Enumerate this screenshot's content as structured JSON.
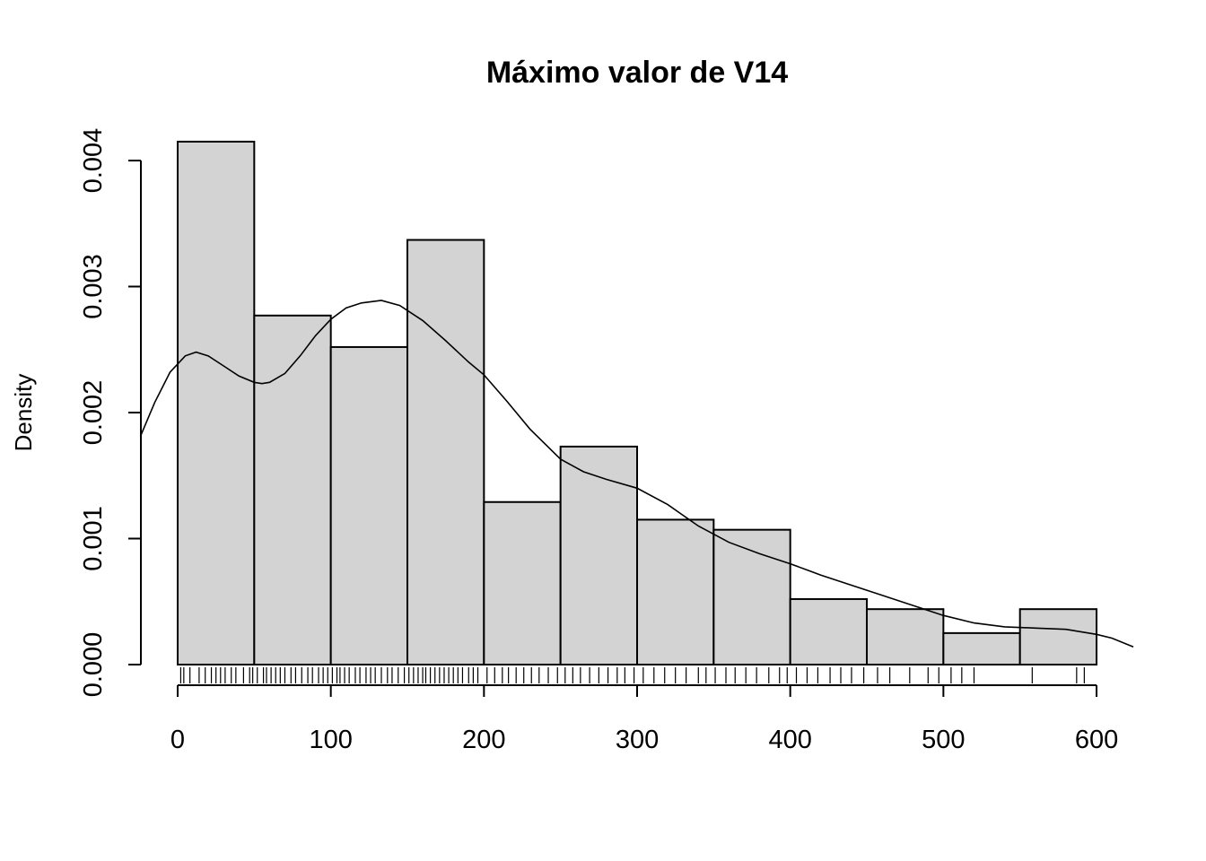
{
  "chart_data": {
    "type": "bar",
    "title": "Máximo valor de V14",
    "xlabel": "",
    "ylabel": "Density",
    "xlim": [
      -24,
      624
    ],
    "ylim": [
      0,
      0.00415
    ],
    "x_ticks": [
      0,
      100,
      200,
      300,
      400,
      500,
      600
    ],
    "x_tick_labels": [
      "0",
      "100",
      "200",
      "300",
      "400",
      "500",
      "600"
    ],
    "y_ticks": [
      0,
      0.001,
      0.002,
      0.003,
      0.004
    ],
    "y_tick_labels": [
      "0.000",
      "0.001",
      "0.002",
      "0.003",
      "0.004"
    ],
    "grid": false,
    "bins": [
      {
        "x0": 0,
        "x1": 50,
        "density": 0.00415
      },
      {
        "x0": 50,
        "x1": 100,
        "density": 0.00277
      },
      {
        "x0": 100,
        "x1": 150,
        "density": 0.00252
      },
      {
        "x0": 150,
        "x1": 200,
        "density": 0.00337
      },
      {
        "x0": 200,
        "x1": 250,
        "density": 0.00129
      },
      {
        "x0": 250,
        "x1": 300,
        "density": 0.00173
      },
      {
        "x0": 300,
        "x1": 350,
        "density": 0.00115
      },
      {
        "x0": 350,
        "x1": 400,
        "density": 0.00107
      },
      {
        "x0": 400,
        "x1": 450,
        "density": 0.00052
      },
      {
        "x0": 450,
        "x1": 500,
        "density": 0.00044
      },
      {
        "x0": 500,
        "x1": 550,
        "density": 0.00025
      },
      {
        "x0": 550,
        "x1": 600,
        "density": 0.00044
      }
    ],
    "density_curve": {
      "x": [
        -24,
        -15,
        -5,
        5,
        12,
        20,
        30,
        40,
        50,
        55,
        60,
        70,
        80,
        90,
        100,
        110,
        120,
        133,
        145,
        160,
        175,
        190,
        200,
        215,
        230,
        250,
        265,
        280,
        300,
        320,
        340,
        360,
        380,
        400,
        420,
        440,
        460,
        480,
        500,
        520,
        540,
        560,
        580,
        600,
        610,
        624
      ],
      "y": [
        0.00182,
        0.00208,
        0.00232,
        0.00245,
        0.00248,
        0.00245,
        0.00237,
        0.00229,
        0.00224,
        0.00223,
        0.00224,
        0.00231,
        0.00245,
        0.00261,
        0.00274,
        0.00283,
        0.00287,
        0.00289,
        0.00285,
        0.00273,
        0.00257,
        0.0024,
        0.0023,
        0.00209,
        0.00187,
        0.00163,
        0.00153,
        0.00147,
        0.0014,
        0.00127,
        0.0011,
        0.00097,
        0.00088,
        0.0008,
        0.00071,
        0.00063,
        0.00055,
        0.00047,
        0.00039,
        0.00033,
        0.0003,
        0.00029,
        0.00028,
        0.00024,
        0.00021,
        0.00014
      ]
    },
    "rug": [
      2,
      4,
      8,
      14,
      18,
      22,
      25,
      28,
      31,
      35,
      38,
      43,
      47,
      49,
      52,
      56,
      58,
      61,
      64,
      67,
      70,
      74,
      77,
      81,
      85,
      88,
      92,
      95,
      98,
      101,
      104,
      106,
      109,
      112,
      116,
      119,
      123,
      126,
      129,
      133,
      137,
      140,
      144,
      148,
      151,
      154,
      157,
      160,
      162,
      165,
      168,
      171,
      174,
      177,
      180,
      183,
      186,
      190,
      193,
      196,
      202,
      207,
      212,
      216,
      221,
      226,
      231,
      236,
      242,
      248,
      253,
      258,
      263,
      269,
      275,
      281,
      287,
      292,
      298,
      304,
      311,
      318,
      325,
      332,
      340,
      345,
      351,
      358,
      364,
      371,
      378,
      386,
      393,
      398,
      404,
      411,
      418,
      426,
      433,
      440,
      448,
      457,
      465,
      478,
      490,
      497,
      505,
      512,
      520,
      558,
      587,
      592
    ]
  }
}
